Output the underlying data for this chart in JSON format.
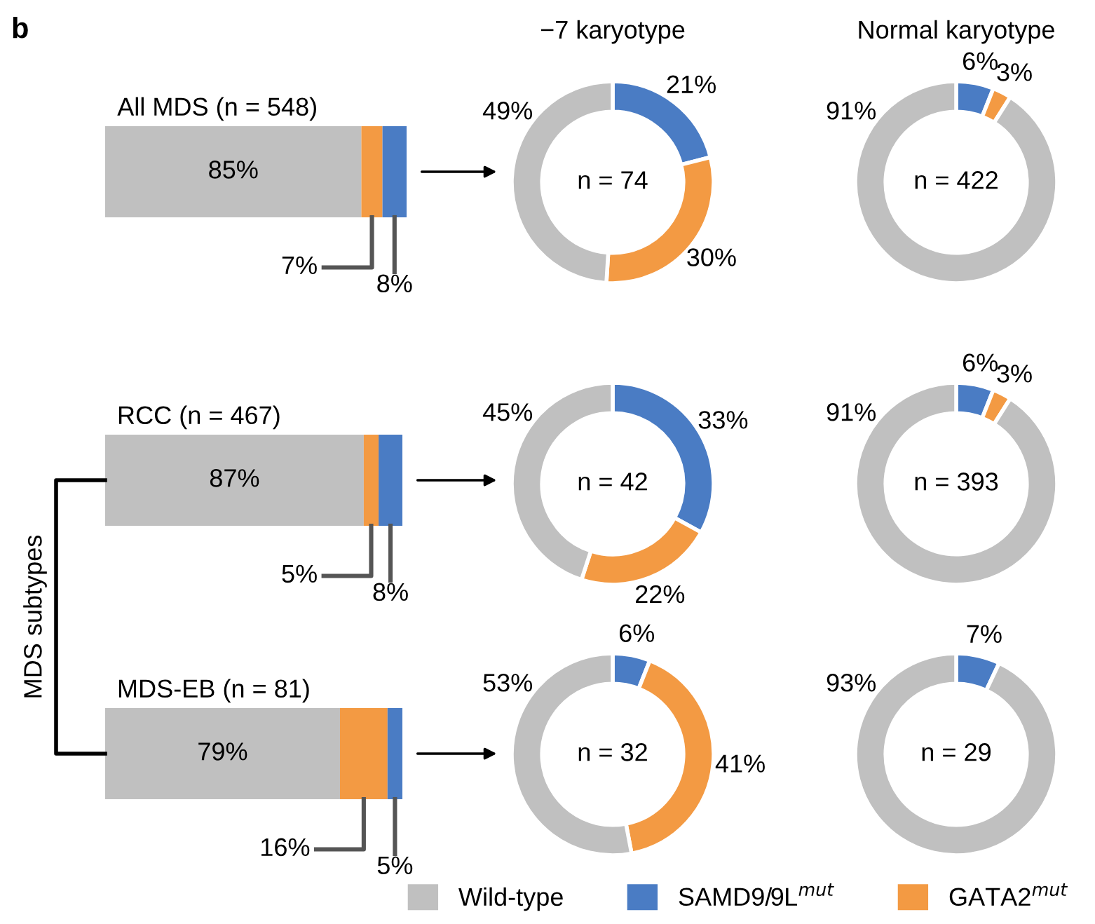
{
  "chart_data": [
    {
      "type": "bar",
      "orientation": "horizontal",
      "stacked": true,
      "title": "All MDS (n = 548)",
      "categories": [
        null
      ],
      "annotations": [
        "b"
      ],
      "series": [
        {
          "color": "#c0c0c0",
          "values": [
            85
          ],
          "value_labels": [
            "85%"
          ]
        },
        {
          "color": "#f39a43",
          "values": [
            7
          ],
          "value_labels": [
            "7%"
          ]
        },
        {
          "color": "#4a7cc4",
          "values": [
            8
          ],
          "value_labels": [
            "8%"
          ]
        }
      ]
    },
    {
      "type": "donut",
      "title": "−7 karyotype",
      "categories": [
        null,
        null,
        null
      ],
      "values": [
        21,
        30,
        49
      ],
      "colors": [
        "#4a7cc4",
        "#f39a43",
        "#c0c0c0"
      ],
      "value_labels": [
        "21%",
        "30%",
        "49%"
      ],
      "annotations": [
        "n = 74"
      ]
    },
    {
      "type": "donut",
      "title": "Normal karyotype",
      "categories": [
        null,
        null,
        null
      ],
      "values": [
        6,
        3,
        91
      ],
      "colors": [
        "#4a7cc4",
        "#f39a43",
        "#c0c0c0"
      ],
      "value_labels": [
        "6%",
        "3%",
        "91%"
      ],
      "annotations": [
        "n = 422"
      ]
    },
    {
      "type": "bar",
      "orientation": "horizontal",
      "stacked": true,
      "title": "RCC (n = 467)",
      "categories": [
        null
      ],
      "annotations": [
        "MDS subtypes"
      ],
      "series": [
        {
          "color": "#c0c0c0",
          "values": [
            87
          ],
          "value_labels": [
            "87%"
          ]
        },
        {
          "color": "#f39a43",
          "values": [
            5
          ],
          "value_labels": [
            "5%"
          ]
        },
        {
          "color": "#4a7cc4",
          "values": [
            8
          ],
          "value_labels": [
            "8%"
          ]
        }
      ]
    },
    {
      "type": "donut",
      "categories": [
        null,
        null,
        null
      ],
      "values": [
        33,
        22,
        45
      ],
      "colors": [
        "#4a7cc4",
        "#f39a43",
        "#c0c0c0"
      ],
      "value_labels": [
        "33%",
        "22%",
        "45%"
      ],
      "annotations": [
        "n = 42"
      ]
    },
    {
      "type": "donut",
      "categories": [
        null,
        null,
        null
      ],
      "values": [
        6,
        3,
        91
      ],
      "colors": [
        "#4a7cc4",
        "#f39a43",
        "#c0c0c0"
      ],
      "value_labels": [
        "6%",
        "3%",
        "91%"
      ],
      "annotations": [
        "n = 393"
      ]
    },
    {
      "type": "bar",
      "orientation": "horizontal",
      "stacked": true,
      "title": "MDS-EB (n = 81)",
      "categories": [
        null
      ],
      "series": [
        {
          "color": "#c0c0c0",
          "values": [
            79
          ],
          "value_labels": [
            "79%"
          ]
        },
        {
          "color": "#f39a43",
          "values": [
            16
          ],
          "value_labels": [
            "16%"
          ]
        },
        {
          "color": "#4a7cc4",
          "values": [
            5
          ],
          "value_labels": [
            "5%"
          ]
        }
      ]
    },
    {
      "type": "donut",
      "categories": [
        "SAMD9/9L$^{mut}$",
        "GATA2$^{mut}$",
        "Wild-type"
      ],
      "legend": "bottom",
      "values": [
        6,
        41,
        53
      ],
      "colors": [
        "#4a7cc4",
        "#f39a43",
        "#c0c0c0"
      ],
      "value_labels": [
        "6%",
        "41%",
        "53%"
      ],
      "annotations": [
        "n = 32"
      ]
    },
    {
      "type": "donut",
      "categories": [
        null,
        null
      ],
      "values": [
        7,
        93
      ],
      "colors": [
        "#4a7cc4",
        "#c0c0c0"
      ],
      "value_labels": [
        "7%",
        "93%"
      ],
      "annotations": [
        "n = 29"
      ]
    }
  ]
}
